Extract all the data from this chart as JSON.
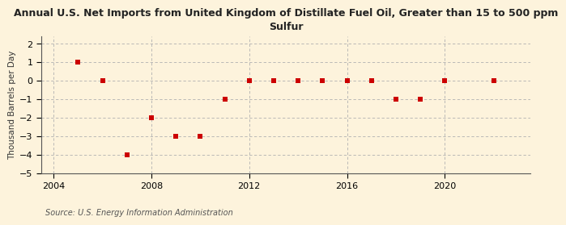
{
  "title": "Annual U.S. Net Imports from United Kingdom of Distillate Fuel Oil, Greater than 15 to 500 ppm\nSulfur",
  "ylabel": "Thousand Barrels per Day",
  "source": "Source: U.S. Energy Information Administration",
  "background_color": "#fdf3dc",
  "years": [
    2005,
    2006,
    2007,
    2008,
    2009,
    2010,
    2011,
    2012,
    2013,
    2014,
    2015,
    2016,
    2017,
    2018,
    2019,
    2020,
    2022
  ],
  "values": [
    1,
    0,
    -4,
    -2,
    -3,
    -3,
    -1,
    0,
    0,
    0,
    0,
    0,
    0,
    -1,
    -1,
    0,
    0
  ],
  "marker_color": "#cc0000",
  "marker_size": 25,
  "xlim": [
    2003.5,
    2023.5
  ],
  "ylim": [
    -5,
    2.4
  ],
  "yticks": [
    -5,
    -4,
    -3,
    -2,
    -1,
    0,
    1,
    2
  ],
  "xticks": [
    2004,
    2008,
    2012,
    2016,
    2020
  ],
  "grid_color": "#b0b0b0",
  "title_fontsize": 9,
  "axis_fontsize": 8,
  "ylabel_fontsize": 7.5,
  "source_fontsize": 7
}
